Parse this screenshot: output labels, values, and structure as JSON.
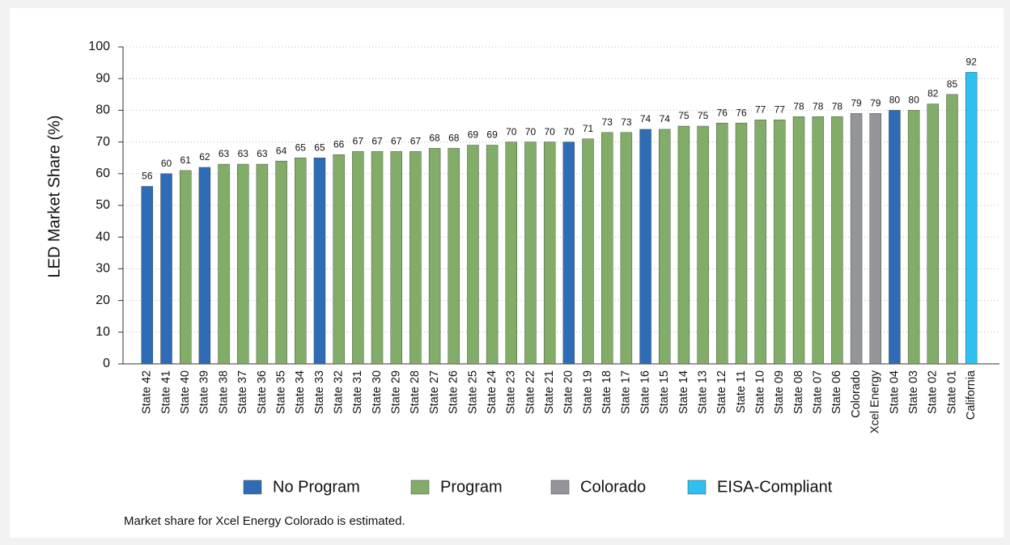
{
  "chart_data": {
    "type": "bar",
    "y_label": "LED Market Share (%)",
    "note": "Market share for Xcel Energy Colorado is estimated.",
    "categories": [
      "State 42",
      "State 41",
      "State 40",
      "State 39",
      "State 38",
      "State 37",
      "State 36",
      "State 35",
      "State 34",
      "State 33",
      "State 32",
      "State 31",
      "State 30",
      "State 29",
      "State 28",
      "State 27",
      "State 26",
      "State 25",
      "State 24",
      "State 23",
      "State 22",
      "State 21",
      "State 20",
      "State 19",
      "State 18",
      "State 17",
      "State 16",
      "State 15",
      "State 14",
      "State 13",
      "State 12",
      "State 11",
      "State 10",
      "State 09",
      "State 08",
      "State 07",
      "State 06",
      "Colorado",
      "Xcel Energy",
      "State 04",
      "State 03",
      "State 02",
      "State 01",
      "California"
    ],
    "series": [
      {
        "name": "No Program",
        "color": "#2e6db5",
        "values": [
          56,
          60,
          null,
          62,
          null,
          null,
          null,
          null,
          null,
          65,
          null,
          null,
          null,
          null,
          null,
          null,
          null,
          null,
          null,
          null,
          null,
          null,
          70,
          null,
          null,
          null,
          74,
          null,
          null,
          null,
          null,
          null,
          null,
          null,
          null,
          null,
          null,
          null,
          null,
          80,
          null,
          null,
          null,
          null
        ]
      },
      {
        "name": "Program",
        "color": "#82ad68",
        "values": [
          null,
          null,
          61,
          null,
          63,
          63,
          63,
          64,
          65,
          null,
          66,
          67,
          67,
          67,
          67,
          68,
          68,
          69,
          69,
          70,
          70,
          70,
          null,
          71,
          73,
          73,
          null,
          74,
          75,
          75,
          76,
          76,
          77,
          77,
          78,
          78,
          78,
          null,
          null,
          null,
          80,
          82,
          85,
          null
        ]
      },
      {
        "name": "Colorado",
        "color": "#939598",
        "values": [
          null,
          null,
          null,
          null,
          null,
          null,
          null,
          null,
          null,
          null,
          null,
          null,
          null,
          null,
          null,
          null,
          null,
          null,
          null,
          null,
          null,
          null,
          null,
          null,
          null,
          null,
          null,
          null,
          null,
          null,
          null,
          null,
          null,
          null,
          null,
          null,
          null,
          79,
          79,
          null,
          null,
          null,
          null,
          null
        ]
      },
      {
        "name": "EISA-Compliant",
        "color": "#2ec1ef",
        "values": [
          null,
          null,
          null,
          null,
          null,
          null,
          null,
          null,
          null,
          null,
          null,
          null,
          null,
          null,
          null,
          null,
          null,
          null,
          null,
          null,
          null,
          null,
          null,
          null,
          null,
          null,
          null,
          null,
          null,
          null,
          null,
          null,
          null,
          null,
          null,
          null,
          null,
          null,
          null,
          null,
          null,
          null,
          null,
          92
        ]
      }
    ],
    "ylim": [
      0,
      100
    ],
    "yticks": [
      0,
      10,
      20,
      30,
      40,
      50,
      60,
      70,
      80,
      90,
      100
    ],
    "grid": true
  }
}
